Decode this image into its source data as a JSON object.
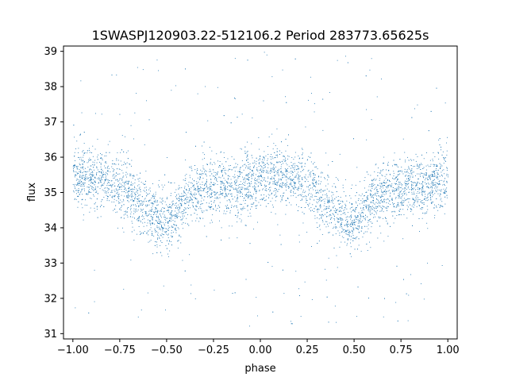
{
  "chart_data": {
    "type": "scatter",
    "title": "1SWASPJ120903.22-512106.2 Period 283773.65625s",
    "xlabel": "phase",
    "ylabel": "flux",
    "xlim": [
      -1.05,
      1.05
    ],
    "ylim": [
      30.85,
      39.15
    ],
    "xticks": [
      -1.0,
      -0.75,
      -0.5,
      -0.25,
      0.0,
      0.25,
      0.5,
      0.75,
      1.0
    ],
    "xtick_labels": [
      "−1.00",
      "−0.75",
      "−0.50",
      "−0.25",
      "0.00",
      "0.25",
      "0.50",
      "0.75",
      "1.00"
    ],
    "yticks": [
      31,
      32,
      33,
      34,
      35,
      36,
      37,
      38,
      39
    ],
    "ytick_labels": [
      "31",
      "32",
      "33",
      "34",
      "35",
      "36",
      "37",
      "38",
      "39"
    ],
    "grid": false,
    "legend": "none",
    "point_color": "#1f77b4",
    "series": [
      {
        "x": [
          -1.0,
          -0.95,
          -0.9,
          -0.85,
          -0.8,
          -0.75,
          -0.7,
          -0.65,
          -0.6,
          -0.55,
          -0.5,
          -0.45,
          -0.4,
          -0.35,
          -0.3,
          -0.25,
          -0.2,
          -0.15,
          -0.1,
          -0.05,
          0.0,
          0.05,
          0.1,
          0.15,
          0.2,
          0.25,
          0.3,
          0.35,
          0.4,
          0.45,
          0.5,
          0.55,
          0.6,
          0.65,
          0.7,
          0.75,
          0.8,
          0.85,
          0.9,
          0.95,
          1.0
        ],
        "y": [
          35.4,
          35.45,
          35.4,
          35.5,
          35.3,
          35.2,
          35.0,
          34.7,
          34.5,
          34.2,
          34.1,
          34.4,
          34.8,
          35.0,
          35.05,
          35.1,
          35.2,
          35.1,
          35.2,
          35.35,
          35.4,
          35.45,
          35.4,
          35.5,
          35.3,
          35.2,
          35.0,
          34.7,
          34.5,
          34.2,
          34.1,
          34.4,
          34.8,
          35.0,
          35.05,
          35.1,
          35.2,
          35.1,
          35.2,
          35.35,
          35.4
        ],
        "scatter_sd": 0.42,
        "outlier_range": [
          31.2,
          39.0
        ]
      }
    ]
  }
}
